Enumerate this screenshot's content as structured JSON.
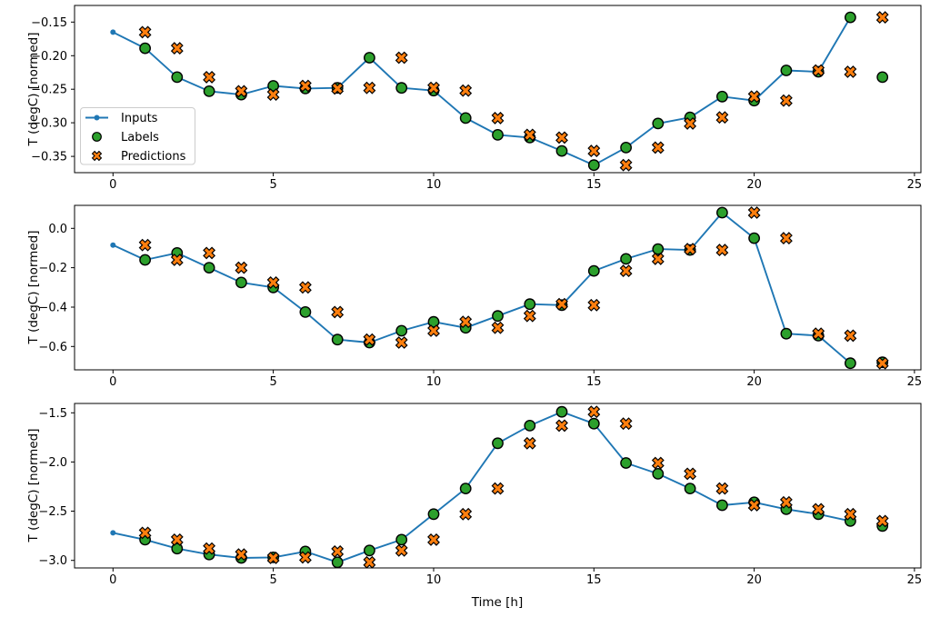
{
  "figure": {
    "background": "#ffffff",
    "colors": {
      "inputs": "#1f77b4",
      "labels": "#2ca02c",
      "predictions": "#ff7f0e",
      "marker_edge": "#000000",
      "spine": "#000000",
      "text": "#000000",
      "legend_border": "#cccccc",
      "legend_fill": "rgba(255,255,255,0.8)"
    }
  },
  "legend": {
    "position": "lower-left of first subplot",
    "items": [
      {
        "label": "Inputs",
        "marker": "line-with-dot",
        "color": "#1f77b4"
      },
      {
        "label": "Labels",
        "marker": "filled-circle",
        "color": "#2ca02c"
      },
      {
        "label": "Predictions",
        "marker": "filled-x",
        "color": "#ff7f0e"
      }
    ]
  },
  "x_axis": {
    "label": "Time [h]",
    "ticks": [
      0,
      5,
      10,
      15,
      20,
      25
    ],
    "tick_labels": [
      "0",
      "5",
      "10",
      "15",
      "20",
      "25"
    ],
    "xlim": [
      -1.2,
      25.2
    ]
  },
  "chart_data": [
    {
      "type": "line",
      "subplot": 1,
      "ylabel": "T (degC) [normed]",
      "ylim": [
        -0.3743,
        -0.1252
      ],
      "y_ticks": [
        -0.15,
        -0.2,
        -0.25,
        -0.3,
        -0.35
      ],
      "y_tick_labels": [
        "−0.15",
        "−0.20",
        "−0.25",
        "−0.30",
        "−0.35"
      ],
      "grid": false,
      "series": [
        {
          "name": "Inputs",
          "type": "line+dot",
          "x": [
            0,
            1,
            2,
            3,
            4,
            5,
            6,
            7,
            8,
            9,
            10,
            11,
            12,
            13,
            14,
            15,
            16,
            17,
            18,
            19,
            20,
            21,
            22,
            23
          ],
          "y": [
            -0.165,
            -0.189,
            -0.232,
            -0.253,
            -0.258,
            -0.245,
            -0.249,
            -0.248,
            -0.203,
            -0.248,
            -0.252,
            -0.293,
            -0.318,
            -0.322,
            -0.342,
            -0.363,
            -0.337,
            -0.301,
            -0.292,
            -0.261,
            -0.267,
            -0.222,
            -0.224,
            -0.143
          ]
        },
        {
          "name": "Labels",
          "type": "scatter-circle",
          "x": [
            1,
            2,
            3,
            4,
            5,
            6,
            7,
            8,
            9,
            10,
            11,
            12,
            13,
            14,
            15,
            16,
            17,
            18,
            19,
            20,
            21,
            22,
            23,
            24
          ],
          "y": [
            -0.189,
            -0.232,
            -0.253,
            -0.258,
            -0.245,
            -0.249,
            -0.248,
            -0.203,
            -0.248,
            -0.252,
            -0.293,
            -0.318,
            -0.322,
            -0.342,
            -0.363,
            -0.337,
            -0.301,
            -0.292,
            -0.261,
            -0.267,
            -0.222,
            -0.224,
            -0.143,
            -0.232
          ]
        },
        {
          "name": "Predictions",
          "type": "scatter-x",
          "x": [
            1,
            2,
            3,
            4,
            5,
            6,
            7,
            8,
            9,
            10,
            11,
            12,
            13,
            14,
            15,
            16,
            17,
            18,
            19,
            20,
            21,
            22,
            23,
            24
          ],
          "y": [
            -0.165,
            -0.189,
            -0.232,
            -0.253,
            -0.258,
            -0.245,
            -0.249,
            -0.248,
            -0.203,
            -0.248,
            -0.252,
            -0.293,
            -0.318,
            -0.322,
            -0.342,
            -0.363,
            -0.337,
            -0.301,
            -0.292,
            -0.261,
            -0.267,
            -0.222,
            -0.224,
            -0.143
          ]
        }
      ]
    },
    {
      "type": "line",
      "subplot": 2,
      "ylabel": "T (degC) [normed]",
      "ylim": [
        -0.7185,
        0.1168
      ],
      "y_ticks": [
        0.0,
        -0.2,
        -0.4,
        -0.6
      ],
      "y_tick_labels": [
        "0.0",
        "−0.2",
        "−0.4",
        "−0.6"
      ],
      "grid": false,
      "series": [
        {
          "name": "Inputs",
          "type": "line+dot",
          "x": [
            0,
            1,
            2,
            3,
            4,
            5,
            6,
            7,
            8,
            9,
            10,
            11,
            12,
            13,
            14,
            15,
            16,
            17,
            18,
            19,
            20,
            21,
            22,
            23
          ],
          "y": [
            -0.085,
            -0.16,
            -0.125,
            -0.2,
            -0.275,
            -0.3,
            -0.425,
            -0.565,
            -0.58,
            -0.52,
            -0.475,
            -0.505,
            -0.445,
            -0.385,
            -0.39,
            -0.216,
            -0.155,
            -0.105,
            -0.11,
            0.08,
            -0.05,
            -0.535,
            -0.545,
            -0.685
          ]
        },
        {
          "name": "Labels",
          "type": "scatter-circle",
          "x": [
            1,
            2,
            3,
            4,
            5,
            6,
            7,
            8,
            9,
            10,
            11,
            12,
            13,
            14,
            15,
            16,
            17,
            18,
            19,
            20,
            21,
            22,
            23,
            24
          ],
          "y": [
            -0.16,
            -0.125,
            -0.2,
            -0.275,
            -0.3,
            -0.425,
            -0.565,
            -0.58,
            -0.52,
            -0.475,
            -0.505,
            -0.445,
            -0.385,
            -0.39,
            -0.216,
            -0.155,
            -0.105,
            -0.11,
            0.08,
            -0.05,
            -0.535,
            -0.545,
            -0.685,
            -0.68
          ]
        },
        {
          "name": "Predictions",
          "type": "scatter-x",
          "x": [
            1,
            2,
            3,
            4,
            5,
            6,
            7,
            8,
            9,
            10,
            11,
            12,
            13,
            14,
            15,
            16,
            17,
            18,
            19,
            20,
            21,
            22,
            23,
            24
          ],
          "y": [
            -0.085,
            -0.16,
            -0.125,
            -0.2,
            -0.275,
            -0.3,
            -0.425,
            -0.565,
            -0.58,
            -0.52,
            -0.475,
            -0.505,
            -0.445,
            -0.385,
            -0.39,
            -0.216,
            -0.155,
            -0.105,
            -0.11,
            0.08,
            -0.05,
            -0.535,
            -0.545,
            -0.685
          ]
        }
      ]
    },
    {
      "type": "line",
      "subplot": 3,
      "ylabel": "T (degC) [normed]",
      "xlabel": "Time [h]",
      "ylim": [
        -3.077,
        -1.405
      ],
      "y_ticks": [
        -1.5,
        -2.0,
        -2.5,
        -3.0
      ],
      "y_tick_labels": [
        "−1.5",
        "−2.0",
        "−2.5",
        "−3.0"
      ],
      "grid": false,
      "series": [
        {
          "name": "Inputs",
          "type": "line+dot",
          "x": [
            0,
            1,
            2,
            3,
            4,
            5,
            6,
            7,
            8,
            9,
            10,
            11,
            12,
            13,
            14,
            15,
            16,
            17,
            18,
            19,
            20,
            21,
            22,
            23
          ],
          "y": [
            -2.72,
            -2.79,
            -2.88,
            -2.94,
            -2.975,
            -2.97,
            -2.91,
            -3.02,
            -2.9,
            -2.79,
            -2.53,
            -2.27,
            -1.81,
            -1.63,
            -1.49,
            -1.61,
            -2.01,
            -2.12,
            -2.27,
            -2.44,
            -2.41,
            -2.48,
            -2.53,
            -2.6
          ]
        },
        {
          "name": "Labels",
          "type": "scatter-circle",
          "x": [
            1,
            2,
            3,
            4,
            5,
            6,
            7,
            8,
            9,
            10,
            11,
            12,
            13,
            14,
            15,
            16,
            17,
            18,
            19,
            20,
            21,
            22,
            23,
            24
          ],
          "y": [
            -2.79,
            -2.88,
            -2.94,
            -2.975,
            -2.97,
            -2.91,
            -3.02,
            -2.9,
            -2.79,
            -2.53,
            -2.27,
            -1.81,
            -1.63,
            -1.49,
            -1.61,
            -2.01,
            -2.12,
            -2.27,
            -2.44,
            -2.41,
            -2.48,
            -2.53,
            -2.6,
            -2.65
          ]
        },
        {
          "name": "Predictions",
          "type": "scatter-x",
          "x": [
            1,
            2,
            3,
            4,
            5,
            6,
            7,
            8,
            9,
            10,
            11,
            12,
            13,
            14,
            15,
            16,
            17,
            18,
            19,
            20,
            21,
            22,
            23,
            24
          ],
          "y": [
            -2.72,
            -2.79,
            -2.88,
            -2.94,
            -2.975,
            -2.97,
            -2.91,
            -3.02,
            -2.9,
            -2.79,
            -2.53,
            -2.27,
            -1.81,
            -1.63,
            -1.49,
            -1.61,
            -2.01,
            -2.12,
            -2.27,
            -2.44,
            -2.41,
            -2.48,
            -2.53,
            -2.6
          ]
        }
      ]
    }
  ]
}
